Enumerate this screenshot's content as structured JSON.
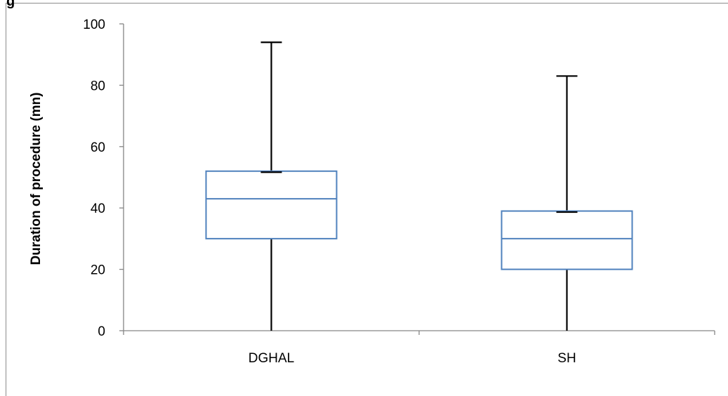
{
  "corner_text": "g",
  "chart_data": {
    "type": "box",
    "title": "",
    "xlabel": "",
    "ylabel": "Duration of procedure (mn)",
    "ylim": [
      0,
      100
    ],
    "yticks": [
      0,
      20,
      40,
      60,
      80,
      100
    ],
    "ytick_labels": [
      "0",
      "20",
      "40",
      "60",
      "80",
      "100"
    ],
    "grid": false,
    "categories": [
      "DGHAL",
      "SH"
    ],
    "boxes": [
      {
        "label": "DGHAL",
        "min": 0,
        "q1": 30,
        "median": 43,
        "q3": 52,
        "max": 94
      },
      {
        "label": "SH",
        "min": 0,
        "q1": 20,
        "median": 30,
        "q3": 39,
        "max": 83
      }
    ],
    "colors": {
      "box": "#4f81bd",
      "whisker": "#000000",
      "axis": "#868686"
    }
  }
}
